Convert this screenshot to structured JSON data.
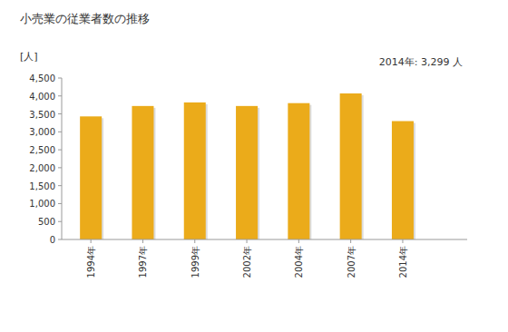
{
  "chart_data": {
    "type": "bar",
    "title": "小売業の従業者数の推移",
    "y_label": "[人]",
    "annotation": "2014年: 3,299 人",
    "categories": [
      "1994年",
      "1997年",
      "1999年",
      "2002年",
      "2004年",
      "2007年",
      "2014年"
    ],
    "values": [
      3430,
      3720,
      3820,
      3720,
      3800,
      4070,
      3299
    ],
    "color": "#ebab1a",
    "ylim": [
      0,
      4500
    ],
    "yticks": [
      0,
      {
        "value": 500,
        "label": "500"
      },
      {
        "value": 1000,
        "label": "1,000"
      },
      {
        "value": 1500,
        "label": "1,500"
      },
      {
        "value": 2000,
        "label": "2,000"
      },
      {
        "value": 2500,
        "label": "2,500"
      },
      {
        "value": 3000,
        "label": "3,000"
      },
      {
        "value": 3500,
        "label": "3,500"
      },
      {
        "value": 4000,
        "label": "4,000"
      },
      {
        "value": 4500,
        "label": "4,500"
      }
    ],
    "grid": false
  }
}
